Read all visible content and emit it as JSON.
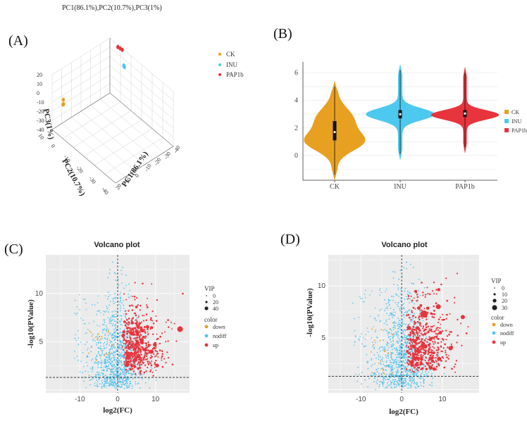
{
  "panel_letters": {
    "a": "(A)",
    "b": "(B)",
    "c": "(C)",
    "d": "(D)"
  },
  "colors": {
    "ck": "#E8A020",
    "inu": "#4DC8EE",
    "pap1b": "#E8343C",
    "down": "#E8A020",
    "nodiff": "#56C4EE",
    "up": "#E8343C"
  },
  "chart_data": [
    {
      "id": "A",
      "type": "scatter",
      "title": "PC1(86.1%),PC2(10.7%),PC3(1%)",
      "xlabel": "PC1(86.1%)",
      "ylabel": "PC2(10.7%)",
      "zlabel": "PC3(1%)",
      "pc1_ticks": [
        "20",
        "10",
        "0",
        "-10",
        "-20",
        "-30",
        "-40"
      ],
      "pc2_ticks": [
        "10",
        "0",
        "-10",
        "-20",
        "-30",
        "-40"
      ],
      "pc3_ticks": [
        "20",
        "10",
        "0",
        "-10",
        "-20",
        "-30",
        "-40"
      ],
      "legend": [
        "CK",
        "INU",
        "PAP1b"
      ],
      "groups": [
        {
          "name": "CK",
          "points": [
            [
              -35,
              5,
              -5
            ],
            [
              -36,
              4,
              -8
            ],
            [
              -34,
              6,
              -12
            ]
          ]
        },
        {
          "name": "INU",
          "points": [
            [
              15,
              -5,
              10
            ],
            [
              16,
              -4,
              9
            ],
            [
              14,
              -6,
              11
            ]
          ]
        },
        {
          "name": "PAP1b",
          "points": [
            [
              20,
              2,
              18
            ],
            [
              21,
              1,
              17
            ],
            [
              19,
              3,
              19
            ]
          ]
        }
      ]
    },
    {
      "id": "B",
      "type": "violin",
      "categories": [
        "CK",
        "INU",
        "PAP1b"
      ],
      "ylim": [
        -1.8,
        6.8
      ],
      "yticks": [
        "0",
        "2",
        "4",
        "6"
      ],
      "legend": [
        "CK",
        "INU",
        "PAP1b"
      ],
      "series": [
        {
          "name": "CK",
          "min": -1.8,
          "max": 5.4,
          "q1": 1.1,
          "median": 1.7,
          "q3": 2.5
        },
        {
          "name": "INU",
          "min": -0.3,
          "max": 6.6,
          "q1": 2.7,
          "median": 3.0,
          "q3": 3.3
        },
        {
          "name": "PAP1b",
          "min": 0.2,
          "max": 6.4,
          "q1": 2.8,
          "median": 3.05,
          "q3": 3.3
        }
      ]
    },
    {
      "id": "C",
      "type": "scatter",
      "title": "Volcano plot",
      "xlabel": "log2(FC)",
      "ylabel": "-log10(PValue)",
      "xlim": [
        -19,
        19
      ],
      "ylim": [
        -0.3,
        14
      ],
      "xticks": [
        "-10",
        "0",
        "10"
      ],
      "yticks": [
        "5",
        "10"
      ],
      "threshold_y": 1.3,
      "vip_title": "VIP",
      "vip_legend": [
        "0",
        "20",
        "40"
      ],
      "color_title": "color",
      "color_legend": [
        "down",
        "nodiff",
        "up"
      ]
    },
    {
      "id": "D",
      "type": "scatter",
      "title": "Volcano plot",
      "xlabel": "log2(FC)",
      "ylabel": "-log10(PValue)",
      "xlim": [
        -18,
        19
      ],
      "ylim": [
        -0.3,
        13
      ],
      "xticks": [
        "-10",
        "0",
        "10"
      ],
      "yticks": [
        "5",
        "10"
      ],
      "threshold_y": 1.3,
      "vip_title": "VIP",
      "vip_legend": [
        "0",
        "10",
        "20",
        "30"
      ],
      "color_title": "color",
      "color_legend": [
        "down",
        "nodiff",
        "up"
      ]
    }
  ]
}
